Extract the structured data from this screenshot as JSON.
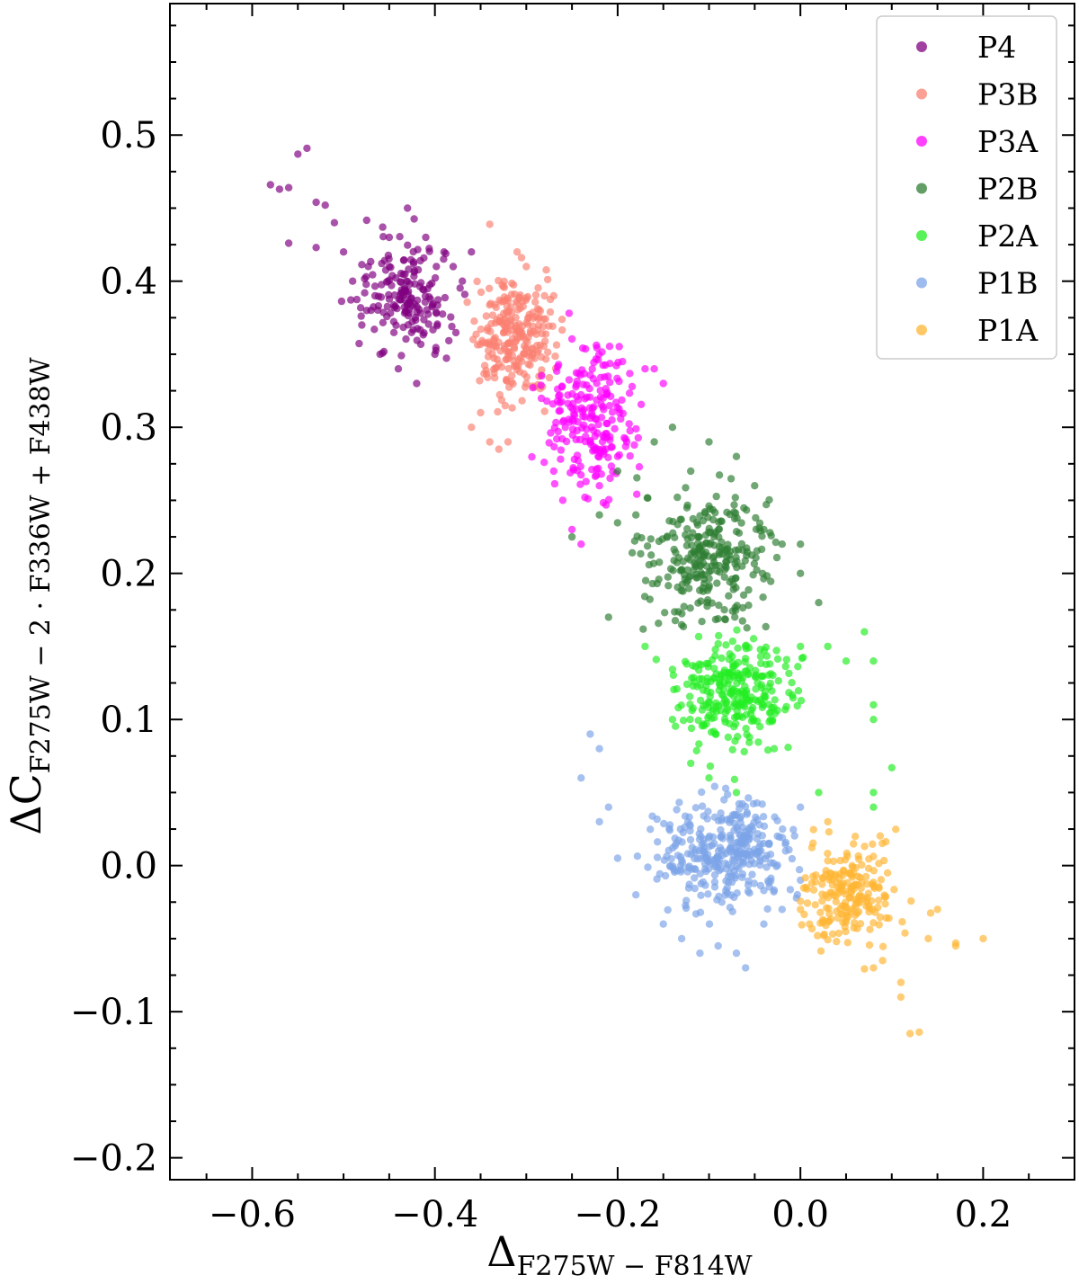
{
  "chart_data": {
    "type": "scatter",
    "xlabel": {
      "main": "Δ",
      "sub": "F275W − F814W"
    },
    "ylabel": {
      "main": "ΔC",
      "sub": "F275W − 2 · F336W + F438W"
    },
    "xlim": [
      -0.69,
      0.3
    ],
    "ylim": [
      -0.215,
      0.59
    ],
    "xticks": [
      -0.6,
      -0.4,
      -0.2,
      0.0,
      0.2
    ],
    "xtick_labels": [
      "−0.6",
      "−0.4",
      "−0.2",
      "0.0",
      "0.2"
    ],
    "yticks": [
      -0.2,
      -0.1,
      0.0,
      0.1,
      0.2,
      0.3,
      0.4,
      0.5
    ],
    "ytick_labels": [
      "−0.2",
      "−0.1",
      "0.0",
      "0.1",
      "0.2",
      "0.3",
      "0.4",
      "0.5"
    ],
    "grid": false,
    "legend_position": "top-right",
    "series": [
      {
        "name": "P4",
        "color": "#800080",
        "count": 200,
        "points": [
          [
            -0.58,
            0.466
          ],
          [
            -0.57,
            0.463
          ],
          [
            -0.56,
            0.464
          ],
          [
            -0.56,
            0.426
          ],
          [
            -0.55,
            0.487
          ],
          [
            -0.54,
            0.491
          ],
          [
            -0.53,
            0.454
          ],
          [
            -0.53,
            0.423
          ],
          [
            -0.52,
            0.452
          ],
          [
            -0.51,
            0.44
          ],
          [
            -0.5,
            0.42
          ],
          [
            -0.49,
            0.4
          ],
          [
            -0.48,
            0.37
          ],
          [
            -0.47,
            0.38
          ],
          [
            -0.46,
            0.35
          ],
          [
            -0.45,
            0.43
          ],
          [
            -0.45,
            0.41
          ],
          [
            -0.44,
            0.34
          ],
          [
            -0.43,
            0.45
          ],
          [
            -0.42,
            0.33
          ],
          [
            -0.41,
            0.43
          ],
          [
            -0.4,
            0.35
          ],
          [
            -0.39,
            0.42
          ],
          [
            -0.38,
            0.41
          ],
          [
            -0.37,
            0.4
          ],
          [
            -0.36,
            0.42
          ]
        ],
        "cluster": {
          "x": [
            -0.52,
            -0.36
          ],
          "y": [
            0.34,
            0.46
          ],
          "center": [
            -0.43,
            0.39
          ]
        }
      },
      {
        "name": "P3B",
        "color": "#fa8072",
        "count": 260,
        "points": [
          [
            -0.36,
            0.3
          ],
          [
            -0.35,
            0.31
          ],
          [
            -0.34,
            0.439
          ],
          [
            -0.34,
            0.29
          ],
          [
            -0.33,
            0.285
          ],
          [
            -0.32,
            0.29
          ],
          [
            -0.31,
            0.42
          ],
          [
            -0.3,
            0.41
          ],
          [
            -0.3,
            0.33
          ],
          [
            -0.28,
            0.39
          ],
          [
            -0.27,
            0.39
          ]
        ],
        "cluster": {
          "x": [
            -0.38,
            -0.25
          ],
          "y": [
            0.3,
            0.43
          ],
          "center": [
            -0.31,
            0.36
          ]
        }
      },
      {
        "name": "P3A",
        "color": "#ff00ff",
        "count": 230,
        "points": [
          [
            -0.27,
            0.27
          ],
          [
            -0.26,
            0.25
          ],
          [
            -0.25,
            0.23
          ],
          [
            -0.24,
            0.22
          ],
          [
            -0.23,
            0.29
          ],
          [
            -0.22,
            0.26
          ],
          [
            -0.2,
            0.28
          ],
          [
            -0.19,
            0.29
          ],
          [
            -0.17,
            0.34
          ],
          [
            -0.16,
            0.34
          ],
          [
            -0.15,
            0.33
          ]
        ],
        "cluster": {
          "x": [
            -0.3,
            -0.15
          ],
          "y": [
            0.22,
            0.39
          ],
          "center": [
            -0.23,
            0.31
          ]
        }
      },
      {
        "name": "P2B",
        "color": "#2e7d32",
        "count": 290,
        "points": [
          [
            -0.25,
            0.225
          ],
          [
            -0.22,
            0.24
          ],
          [
            -0.2,
            0.27
          ],
          [
            -0.18,
            0.24
          ],
          [
            -0.16,
            0.29
          ],
          [
            -0.14,
            0.3
          ],
          [
            -0.12,
            0.27
          ],
          [
            -0.1,
            0.29
          ],
          [
            -0.07,
            0.28
          ],
          [
            -0.05,
            0.26
          ],
          [
            -0.04,
            0.23
          ],
          [
            -0.02,
            0.22
          ],
          [
            0.0,
            0.2
          ],
          [
            0.0,
            0.22
          ],
          [
            0.02,
            0.18
          ],
          [
            -0.21,
            0.17
          ]
        ],
        "cluster": {
          "x": [
            -0.22,
            -0.01
          ],
          "y": [
            0.16,
            0.3
          ],
          "center": [
            -0.1,
            0.21
          ]
        }
      },
      {
        "name": "P2A",
        "color": "#22ee22",
        "count": 290,
        "points": [
          [
            -0.17,
            0.15
          ],
          [
            -0.14,
            0.1
          ],
          [
            -0.12,
            0.07
          ],
          [
            -0.1,
            0.06
          ],
          [
            -0.07,
            0.05
          ],
          [
            0.0,
            0.15
          ],
          [
            0.03,
            0.15
          ],
          [
            0.05,
            0.14
          ],
          [
            0.07,
            0.16
          ],
          [
            0.08,
            0.14
          ],
          [
            0.08,
            0.11
          ],
          [
            0.08,
            0.1
          ],
          [
            0.08,
            0.05
          ],
          [
            0.08,
            0.04
          ],
          [
            0.1,
            0.067
          ],
          [
            0.02,
            0.05
          ]
        ],
        "cluster": {
          "x": [
            -0.17,
            0.02
          ],
          "y": [
            0.05,
            0.17
          ],
          "center": [
            -0.07,
            0.12
          ]
        }
      },
      {
        "name": "P1B",
        "color": "#7ca4e8",
        "count": 350,
        "points": [
          [
            -0.24,
            0.06
          ],
          [
            -0.23,
            0.09
          ],
          [
            -0.22,
            0.08
          ],
          [
            -0.22,
            0.03
          ],
          [
            -0.21,
            0.04
          ],
          [
            -0.2,
            0.005
          ],
          [
            -0.18,
            -0.02
          ],
          [
            -0.15,
            -0.04
          ],
          [
            -0.13,
            -0.05
          ],
          [
            -0.11,
            -0.06
          ],
          [
            -0.09,
            -0.055
          ],
          [
            -0.07,
            -0.06
          ],
          [
            -0.06,
            -0.07
          ],
          [
            -0.04,
            -0.04
          ],
          [
            -0.02,
            -0.03
          ],
          [
            0.0,
            -0.01
          ],
          [
            0.0,
            0.04
          ]
        ],
        "cluster": {
          "x": [
            -0.24,
            0.0
          ],
          "y": [
            -0.06,
            0.06
          ],
          "center": [
            -0.08,
            0.01
          ]
        }
      },
      {
        "name": "P1A",
        "color": "#ffb533",
        "count": 220,
        "points": [
          [
            0.0,
            -0.03
          ],
          [
            0.01,
            -0.04
          ],
          [
            0.03,
            0.03
          ],
          [
            0.06,
            0.02
          ],
          [
            0.08,
            -0.07
          ],
          [
            0.09,
            -0.065
          ],
          [
            0.11,
            -0.09
          ],
          [
            0.11,
            -0.08
          ],
          [
            0.12,
            -0.115
          ],
          [
            0.13,
            -0.114
          ],
          [
            0.14,
            -0.05
          ],
          [
            0.15,
            -0.03
          ],
          [
            0.17,
            -0.055
          ],
          [
            0.17,
            -0.053
          ],
          [
            0.2,
            -0.05
          ]
        ],
        "cluster": {
          "x": [
            0.0,
            0.17
          ],
          "y": [
            -0.08,
            0.03
          ],
          "center": [
            0.05,
            -0.02
          ]
        }
      }
    ]
  }
}
